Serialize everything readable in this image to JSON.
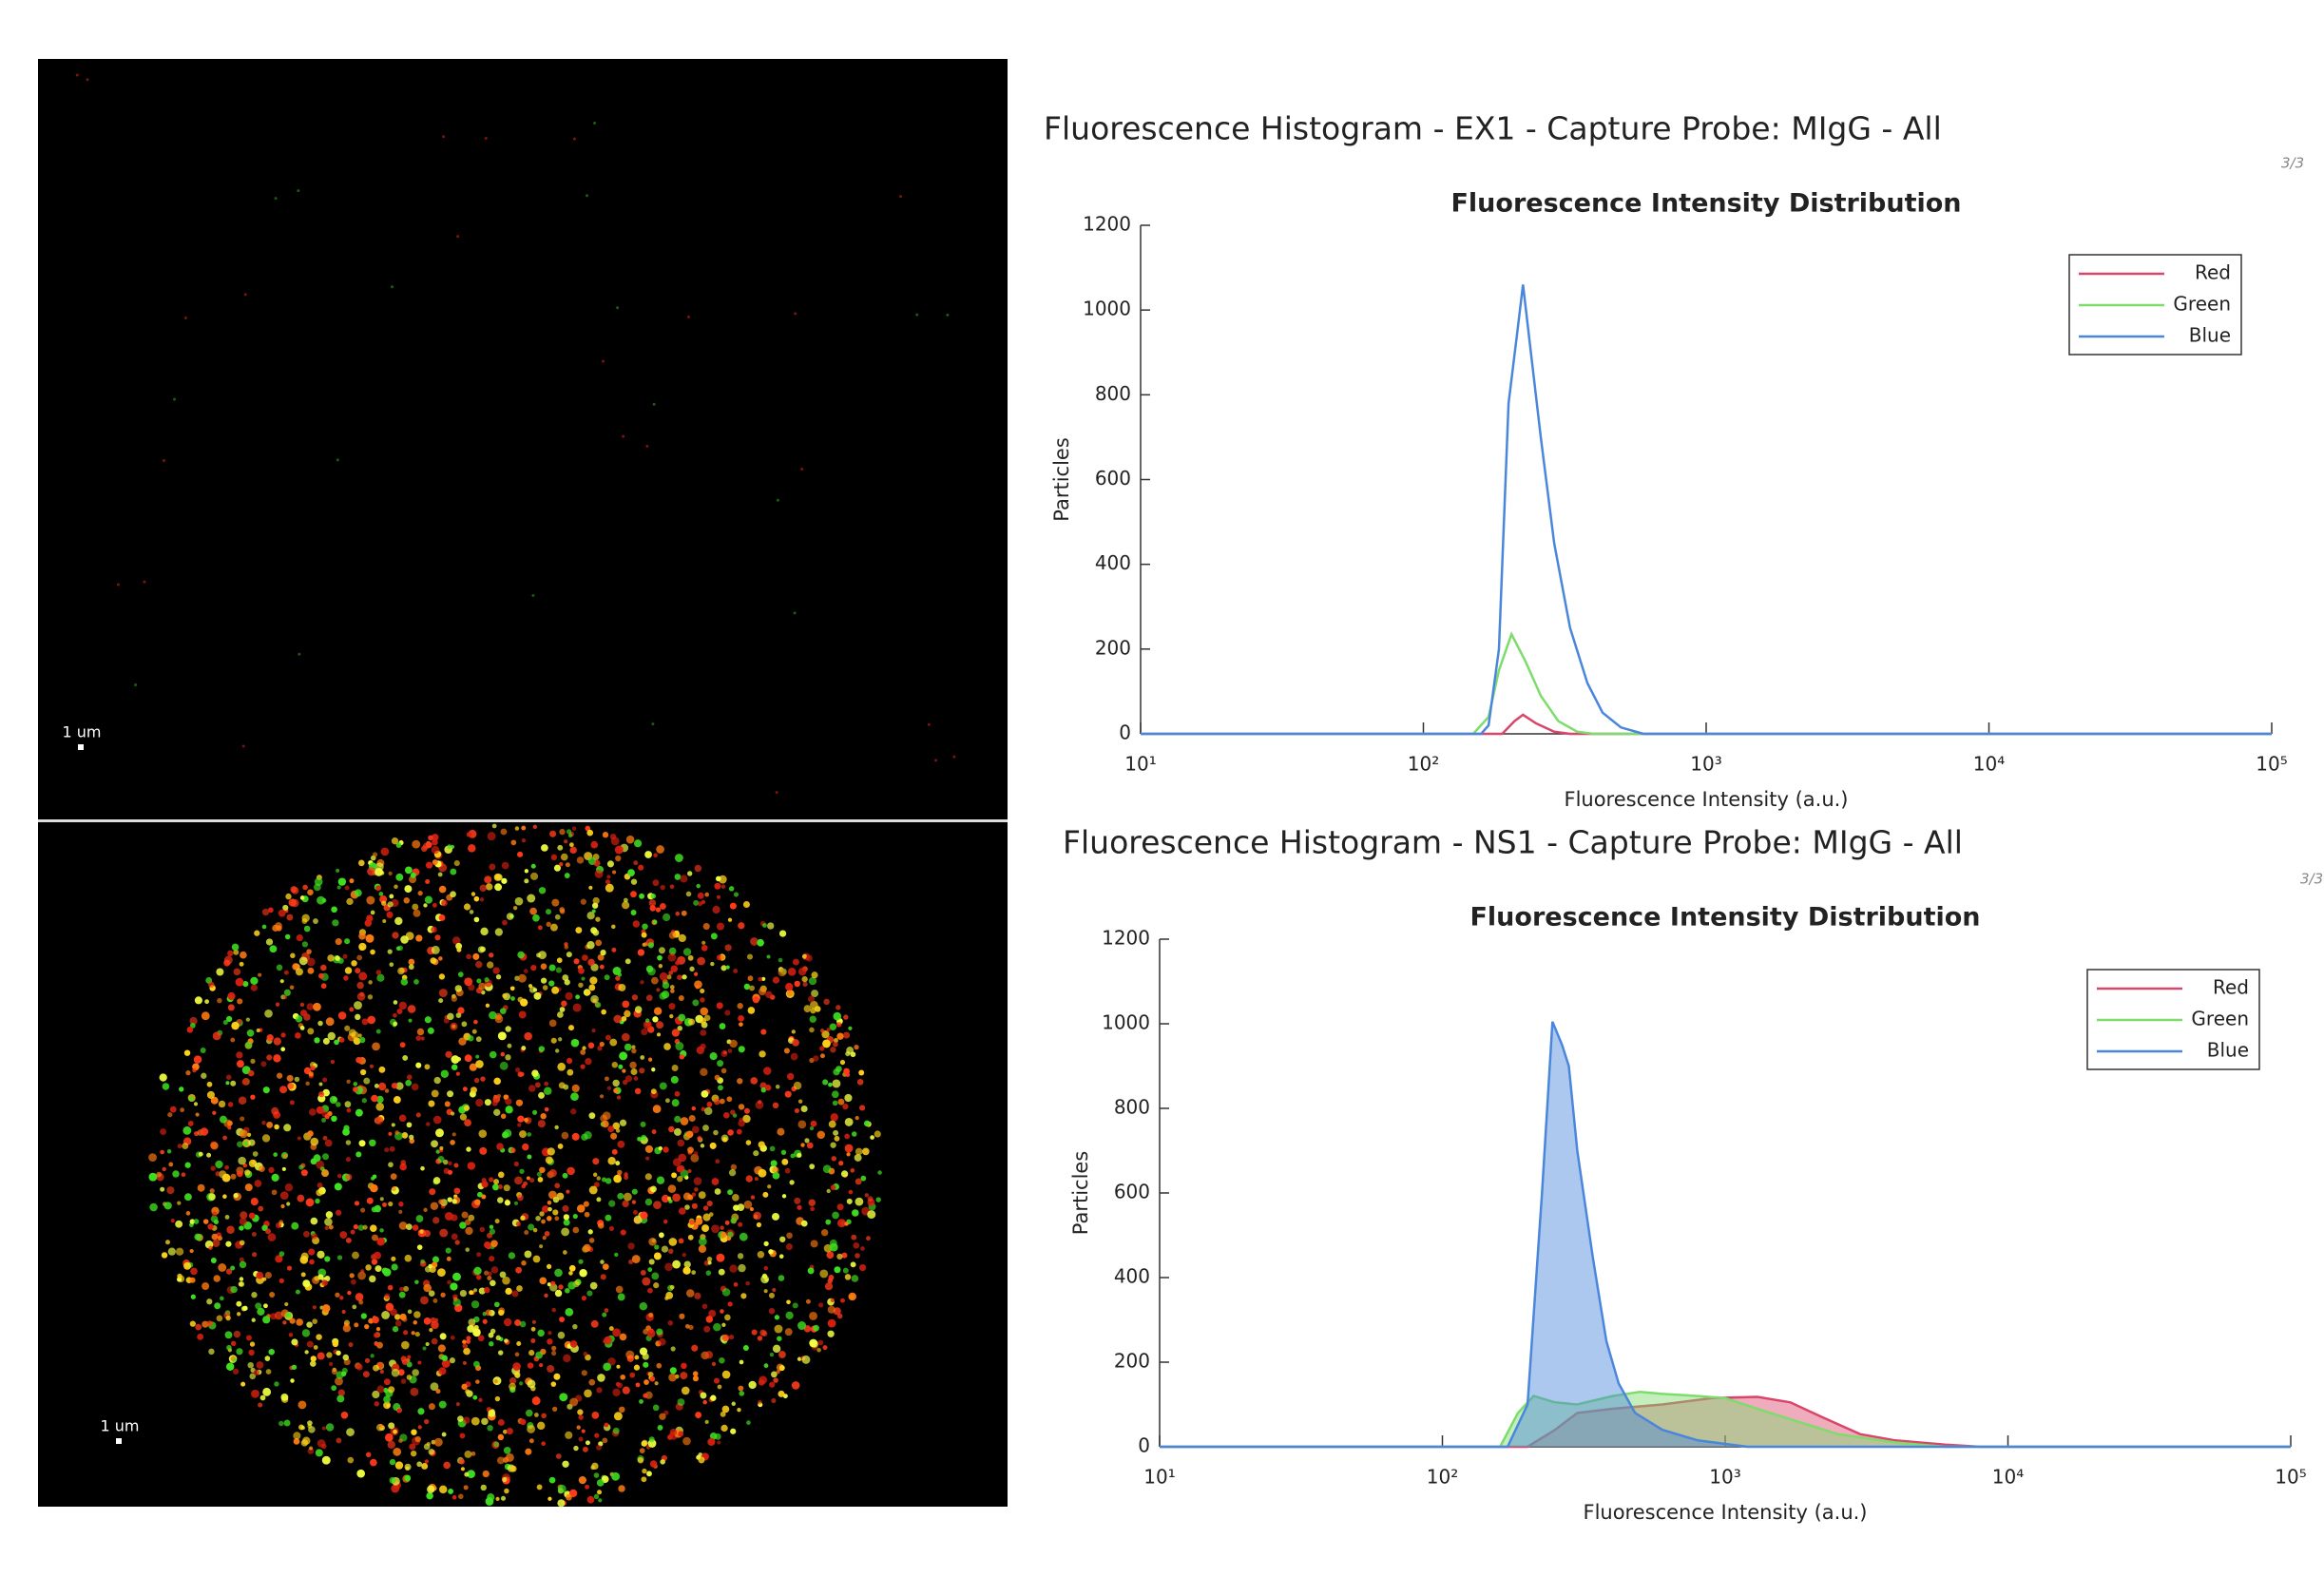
{
  "images": [
    {
      "scale_label": "1 um"
    },
    {
      "scale_label": "1 um"
    }
  ],
  "chart_data": [
    {
      "type": "line",
      "figure_title": "Fluorescence Histogram - EX1 - Capture Probe: MIgG - All",
      "page_marker": "3/3",
      "title": "Fluorescence Intensity Distribution",
      "xlabel": "Fluorescence Intensity (a.u.)",
      "ylabel": "Particles",
      "xscale": "log",
      "xlim": [
        10,
        100000
      ],
      "xticks": [
        {
          "value": 10,
          "label": "10¹"
        },
        {
          "value": 100,
          "label": "10²"
        },
        {
          "value": 1000,
          "label": "10³"
        },
        {
          "value": 10000,
          "label": "10⁴"
        },
        {
          "value": 100000,
          "label": "10⁵"
        }
      ],
      "ylim": [
        0,
        1200
      ],
      "yticks": [
        0,
        200,
        400,
        600,
        800,
        1000,
        1200
      ],
      "legend": "upper right",
      "fill": false,
      "series": [
        {
          "name": "Red",
          "color": "#d9466a",
          "x": [
            10,
            190,
            210,
            225,
            250,
            290,
            330,
            100000
          ],
          "values": [
            0,
            0,
            30,
            45,
            25,
            5,
            0,
            0
          ]
        },
        {
          "name": "Green",
          "color": "#7ddc6c",
          "x": [
            10,
            150,
            170,
            185,
            205,
            230,
            260,
            300,
            350,
            400,
            100000
          ],
          "values": [
            0,
            0,
            40,
            150,
            235,
            170,
            90,
            30,
            5,
            0,
            0
          ]
        },
        {
          "name": "Blue",
          "color": "#4a86dc",
          "x": [
            10,
            160,
            170,
            185,
            200,
            215,
            225,
            240,
            260,
            290,
            330,
            380,
            430,
            500,
            600,
            100000
          ],
          "values": [
            0,
            0,
            20,
            200,
            780,
            950,
            1060,
            900,
            700,
            450,
            250,
            120,
            50,
            15,
            0,
            0
          ]
        }
      ]
    },
    {
      "type": "line",
      "figure_title": "Fluorescence Histogram - NS1 - Capture Probe: MIgG - All",
      "page_marker": "3/3",
      "title": "Fluorescence Intensity Distribution",
      "xlabel": "Fluorescence Intensity (a.u.)",
      "ylabel": "Particles",
      "xscale": "log",
      "xlim": [
        10,
        100000
      ],
      "xticks": [
        {
          "value": 10,
          "label": "10¹"
        },
        {
          "value": 100,
          "label": "10²"
        },
        {
          "value": 1000,
          "label": "10³"
        },
        {
          "value": 10000,
          "label": "10⁴"
        },
        {
          "value": 100000,
          "label": "10⁵"
        }
      ],
      "ylim": [
        0,
        1200
      ],
      "yticks": [
        0,
        200,
        400,
        600,
        800,
        1000,
        1200
      ],
      "legend": "upper right",
      "fill": true,
      "series": [
        {
          "name": "Red",
          "color": "#d9466a",
          "x": [
            10,
            200,
            250,
            300,
            400,
            600,
            900,
            1300,
            1700,
            2200,
            3000,
            4000,
            6000,
            8000,
            100000
          ],
          "values": [
            0,
            0,
            40,
            80,
            90,
            100,
            115,
            118,
            105,
            70,
            30,
            15,
            5,
            0,
            0
          ]
        },
        {
          "name": "Green",
          "color": "#7ddc6c",
          "x": [
            10,
            160,
            185,
            210,
            250,
            300,
            400,
            500,
            600,
            800,
            1000,
            1300,
            1800,
            2500,
            4000,
            6000,
            100000
          ],
          "values": [
            0,
            0,
            80,
            120,
            105,
            100,
            120,
            130,
            125,
            120,
            115,
            90,
            60,
            30,
            10,
            0,
            0
          ]
        },
        {
          "name": "Blue",
          "color": "#4a86dc",
          "x": [
            10,
            170,
            200,
            225,
            245,
            265,
            280,
            300,
            340,
            380,
            420,
            480,
            600,
            800,
            1200,
            100000
          ],
          "values": [
            0,
            0,
            100,
            600,
            1005,
            950,
            900,
            700,
            450,
            250,
            150,
            80,
            40,
            15,
            0,
            0
          ]
        }
      ]
    }
  ]
}
